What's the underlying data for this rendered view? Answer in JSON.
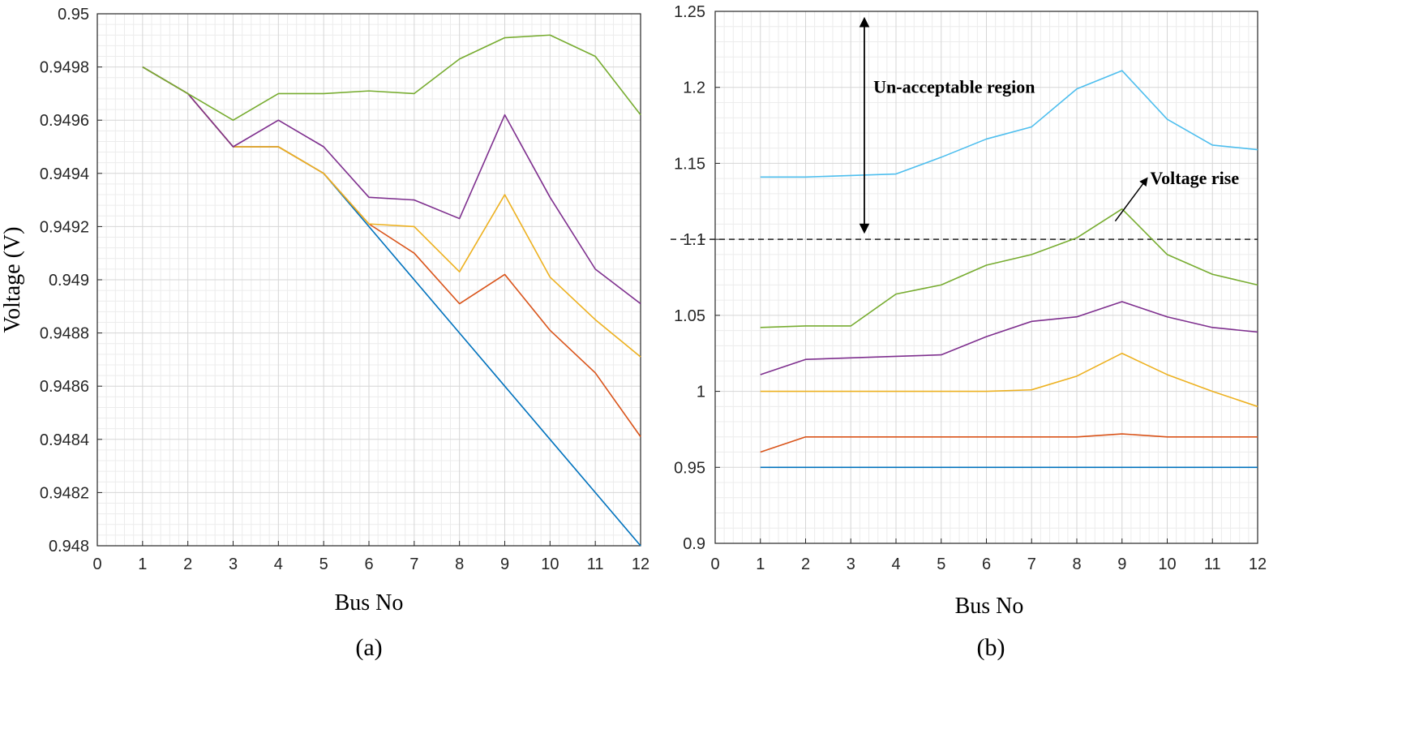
{
  "chart_data": [
    {
      "type": "line",
      "caption": "(a)",
      "title": "",
      "xlabel": "Bus No",
      "ylabel": "Voltage (V)",
      "xlim": [
        0,
        12
      ],
      "ylim": [
        0.948,
        0.95
      ],
      "grid": true,
      "x": [
        1,
        2,
        3,
        4,
        5,
        6,
        7,
        8,
        9,
        10,
        11,
        12
      ],
      "xticks": [
        "0",
        "1",
        "2",
        "3",
        "4",
        "5",
        "6",
        "7",
        "8",
        "9",
        "10",
        "11",
        "12"
      ],
      "yticks": [
        "0.948",
        "0.9482",
        "0.9484",
        "0.9486",
        "0.9488",
        "0.949",
        "0.9492",
        "0.9494",
        "0.9496",
        "0.9498",
        "0.95"
      ],
      "series": [
        {
          "name": "blue",
          "color": "#0072BD",
          "values": [
            0.9498,
            0.9497,
            0.9495,
            0.9495,
            0.9494,
            0.9492,
            0.949,
            0.9488,
            0.9486,
            0.9484,
            0.9482,
            0.948
          ]
        },
        {
          "name": "orange",
          "color": "#D95319",
          "values": [
            0.9498,
            0.9497,
            0.9495,
            0.9495,
            0.9494,
            0.94921,
            0.9491,
            0.94891,
            0.94902,
            0.94881,
            0.94865,
            0.94841
          ]
        },
        {
          "name": "yellow",
          "color": "#EDB120",
          "values": [
            0.9498,
            0.9497,
            0.9495,
            0.9495,
            0.9494,
            0.94921,
            0.9492,
            0.94903,
            0.94932,
            0.94901,
            0.94885,
            0.94871
          ]
        },
        {
          "name": "purple",
          "color": "#7E2F8E",
          "values": [
            0.9498,
            0.9497,
            0.9495,
            0.9496,
            0.9495,
            0.94931,
            0.9493,
            0.94923,
            0.94962,
            0.94931,
            0.94904,
            0.94891
          ]
        },
        {
          "name": "green",
          "color": "#77AC30",
          "values": [
            0.9498,
            0.9497,
            0.9496,
            0.9497,
            0.9497,
            0.94971,
            0.9497,
            0.94983,
            0.94991,
            0.94992,
            0.94984,
            0.94962
          ]
        }
      ]
    },
    {
      "type": "line",
      "caption": "(b)",
      "title": "",
      "xlabel": "Bus No",
      "ylabel": "",
      "xlim": [
        0,
        12
      ],
      "ylim": [
        0.9,
        1.25
      ],
      "grid": true,
      "x": [
        1,
        2,
        3,
        4,
        5,
        6,
        7,
        8,
        9,
        10,
        11,
        12
      ],
      "xticks": [
        "0",
        "1",
        "2",
        "3",
        "4",
        "5",
        "6",
        "7",
        "8",
        "9",
        "10",
        "11",
        "12"
      ],
      "yticks": [
        "0.9",
        "0.95",
        "1",
        "1.05",
        "1.1",
        "1.15",
        "1.2",
        "1.25"
      ],
      "threshold": 1.1,
      "annotations": {
        "unacceptable": "Un-acceptable region",
        "rise": "Voltage rise"
      },
      "series": [
        {
          "name": "blue",
          "color": "#0072BD",
          "values": [
            0.95,
            0.95,
            0.95,
            0.95,
            0.95,
            0.95,
            0.95,
            0.95,
            0.95,
            0.95,
            0.95,
            0.95
          ]
        },
        {
          "name": "orange",
          "color": "#D95319",
          "values": [
            0.96,
            0.97,
            0.97,
            0.97,
            0.97,
            0.97,
            0.97,
            0.97,
            0.972,
            0.97,
            0.97,
            0.97
          ]
        },
        {
          "name": "yellow",
          "color": "#EDB120",
          "values": [
            1.0,
            1.0,
            1.0,
            1.0,
            1.0,
            1.0,
            1.001,
            1.01,
            1.025,
            1.011,
            1.0,
            0.99
          ]
        },
        {
          "name": "purple",
          "color": "#7E2F8E",
          "values": [
            1.011,
            1.021,
            1.022,
            1.023,
            1.024,
            1.036,
            1.046,
            1.049,
            1.059,
            1.049,
            1.042,
            1.039
          ]
        },
        {
          "name": "green",
          "color": "#77AC30",
          "values": [
            1.042,
            1.043,
            1.043,
            1.064,
            1.07,
            1.083,
            1.09,
            1.101,
            1.12,
            1.09,
            1.077,
            1.07
          ]
        },
        {
          "name": "cyan",
          "color": "#4DBEEE",
          "values": [
            1.141,
            1.141,
            1.142,
            1.143,
            1.154,
            1.166,
            1.174,
            1.199,
            1.211,
            1.179,
            1.162,
            1.159
          ]
        }
      ]
    }
  ]
}
